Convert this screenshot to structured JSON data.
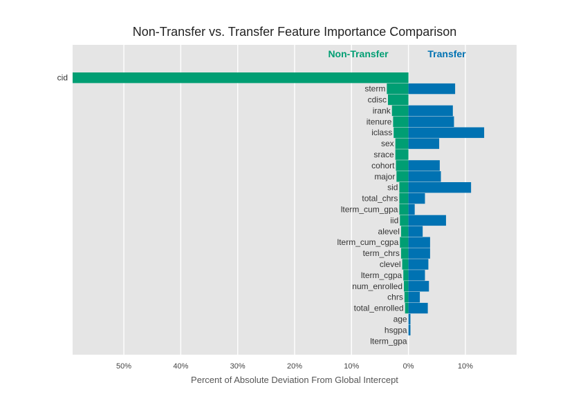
{
  "chart_data": {
    "type": "bar",
    "orientation": "horizontal-diverging",
    "title": "Non-Transfer vs. Transfer Feature Importance Comparison",
    "xlabel": "Percent of Absolute Deviation From Global Intercept",
    "ylabel": "",
    "xlim": [
      -59,
      19
    ],
    "xticks": [
      {
        "value": -50,
        "label": "50%"
      },
      {
        "value": -40,
        "label": "40%"
      },
      {
        "value": -30,
        "label": "30%"
      },
      {
        "value": -20,
        "label": "20%"
      },
      {
        "value": -10,
        "label": "10%"
      },
      {
        "value": 0,
        "label": "0%"
      },
      {
        "value": 10,
        "label": "10%"
      }
    ],
    "grid": true,
    "categories": [
      "cid",
      "sterm",
      "cdisc",
      "irank",
      "itenure",
      "iclass",
      "sex",
      "srace",
      "cohort",
      "major",
      "sid",
      "total_chrs",
      "lterm_cum_gpa",
      "iid",
      "alevel",
      "lterm_cum_cgpa",
      "term_chrs",
      "clevel",
      "lterm_cgpa",
      "num_enrolled",
      "chrs",
      "total_enrolled",
      "age",
      "hsgpa",
      "lterm_gpa"
    ],
    "series": [
      {
        "name": "Non-Transfer",
        "color": "#009e73",
        "direction": "left",
        "values": [
          59.0,
          3.8,
          3.6,
          2.9,
          2.7,
          2.6,
          2.3,
          2.3,
          2.2,
          2.1,
          1.6,
          1.6,
          1.6,
          1.5,
          1.3,
          1.5,
          1.3,
          1.1,
          0.9,
          0.8,
          0.7,
          0.6,
          0.0,
          0.0,
          0.0
        ]
      },
      {
        "name": "Transfer",
        "color": "#0072b2",
        "direction": "right",
        "values": [
          0.0,
          8.2,
          0.0,
          7.8,
          8.0,
          13.3,
          5.4,
          0.0,
          5.5,
          5.7,
          11.0,
          2.9,
          1.1,
          6.6,
          2.5,
          3.8,
          3.8,
          3.5,
          2.9,
          3.6,
          2.0,
          3.4,
          0.35,
          0.35,
          0.0
        ]
      }
    ]
  }
}
